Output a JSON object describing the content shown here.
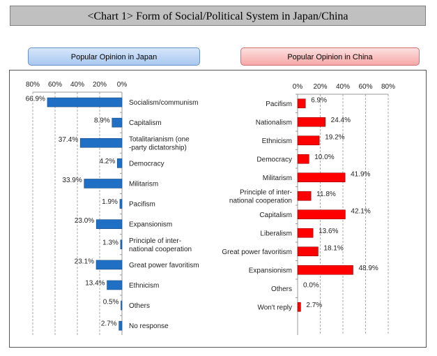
{
  "title": "<Chart 1> Form of Social/Political System in Japan/China",
  "chart_data": [
    {
      "type": "bar",
      "orientation": "horizontal-reversed",
      "title": "Popular Opinion in Japan",
      "color": "#1f6fc4",
      "categories": [
        "Socialism/communism",
        "Capitalism",
        "Totalitarianism (one\n-party dictatorship)",
        "Democracy",
        "Militarism",
        "Pacifism",
        "Expansionism",
        "Principle of inter-\nnational cooperation",
        "Great power favoritism",
        "Ethnicism",
        "Others",
        "No response"
      ],
      "values": [
        66.9,
        8.9,
        37.4,
        4.2,
        33.9,
        1.9,
        23.0,
        1.3,
        23.1,
        13.4,
        0.5,
        2.7
      ],
      "data_labels": [
        "66.9%",
        "8.9%",
        "37.4%",
        "4.2%",
        "33.9%",
        "1.9%",
        "23.0%",
        "1.3%",
        "23.1%",
        "13.4%",
        "0.5%",
        "2.7%"
      ],
      "xlim": [
        0,
        80
      ],
      "ticks": [
        "0%",
        "20%",
        "40%",
        "60%",
        "80%"
      ],
      "grid": true
    },
    {
      "type": "bar",
      "orientation": "horizontal",
      "title": "Popular Opinion in China",
      "color": "#ff0000",
      "categories": [
        "Pacifism",
        "Nationalism",
        "Ethnicism",
        "Democracy",
        "Militarism",
        "Principle of inter-\nnational cooperation",
        "Capitalism",
        "Liberalism",
        "Great power favoritism",
        "Expansionism",
        "Others",
        "Won't reply"
      ],
      "values": [
        6.9,
        24.4,
        19.2,
        10.0,
        41.9,
        11.8,
        42.1,
        13.6,
        18.1,
        48.9,
        0.0,
        2.7
      ],
      "data_labels": [
        "6.9%",
        "24.4%",
        "19.2%",
        "10.0%",
        "41.9%",
        "11.8%",
        "42.1%",
        "13.6%",
        "18.1%",
        "48.9%",
        "0.0%",
        "2.7%"
      ],
      "xlim": [
        0,
        80
      ],
      "ticks": [
        "0%",
        "20%",
        "40%",
        "60%",
        "80%"
      ],
      "grid": true
    }
  ]
}
